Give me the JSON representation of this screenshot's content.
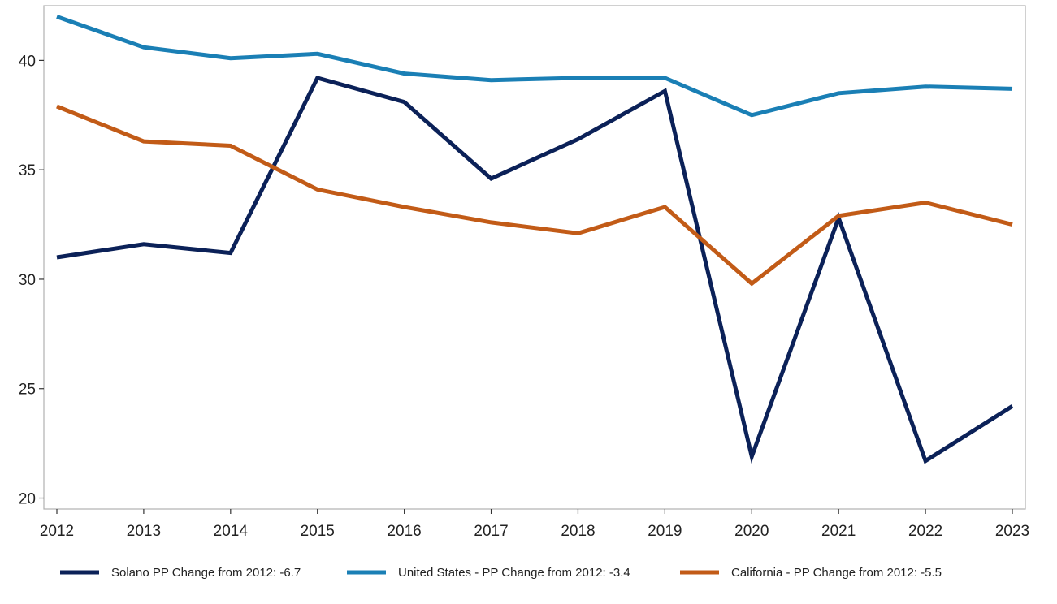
{
  "chart_data": {
    "type": "line",
    "title": "",
    "xlabel": "",
    "ylabel": "",
    "x": [
      "2012",
      "2013",
      "2014",
      "2015",
      "2016",
      "2017",
      "2018",
      "2019",
      "2020",
      "2021",
      "2022",
      "2023"
    ],
    "ylim": [
      19.5,
      42.5
    ],
    "yticks": [
      20,
      25,
      30,
      35,
      40
    ],
    "grid": false,
    "legend_position": "bottom",
    "series": [
      {
        "name": "Solano PP Change from 2012: -6.7",
        "color": "#0b2158",
        "values": [
          31.0,
          31.6,
          31.2,
          39.2,
          38.1,
          34.6,
          36.4,
          38.6,
          21.9,
          32.8,
          21.7,
          24.2
        ]
      },
      {
        "name": "United States - PP Change from 2012: -3.4",
        "color": "#1a7fb5",
        "values": [
          42.0,
          40.6,
          40.1,
          40.3,
          39.4,
          39.1,
          39.2,
          39.2,
          37.5,
          38.5,
          38.8,
          38.7
        ]
      },
      {
        "name": "California - PP Change from 2012: -5.5",
        "color": "#c25b17",
        "values": [
          37.9,
          36.3,
          36.1,
          34.1,
          33.3,
          32.6,
          32.1,
          33.3,
          29.8,
          32.9,
          33.5,
          32.5
        ]
      }
    ]
  }
}
